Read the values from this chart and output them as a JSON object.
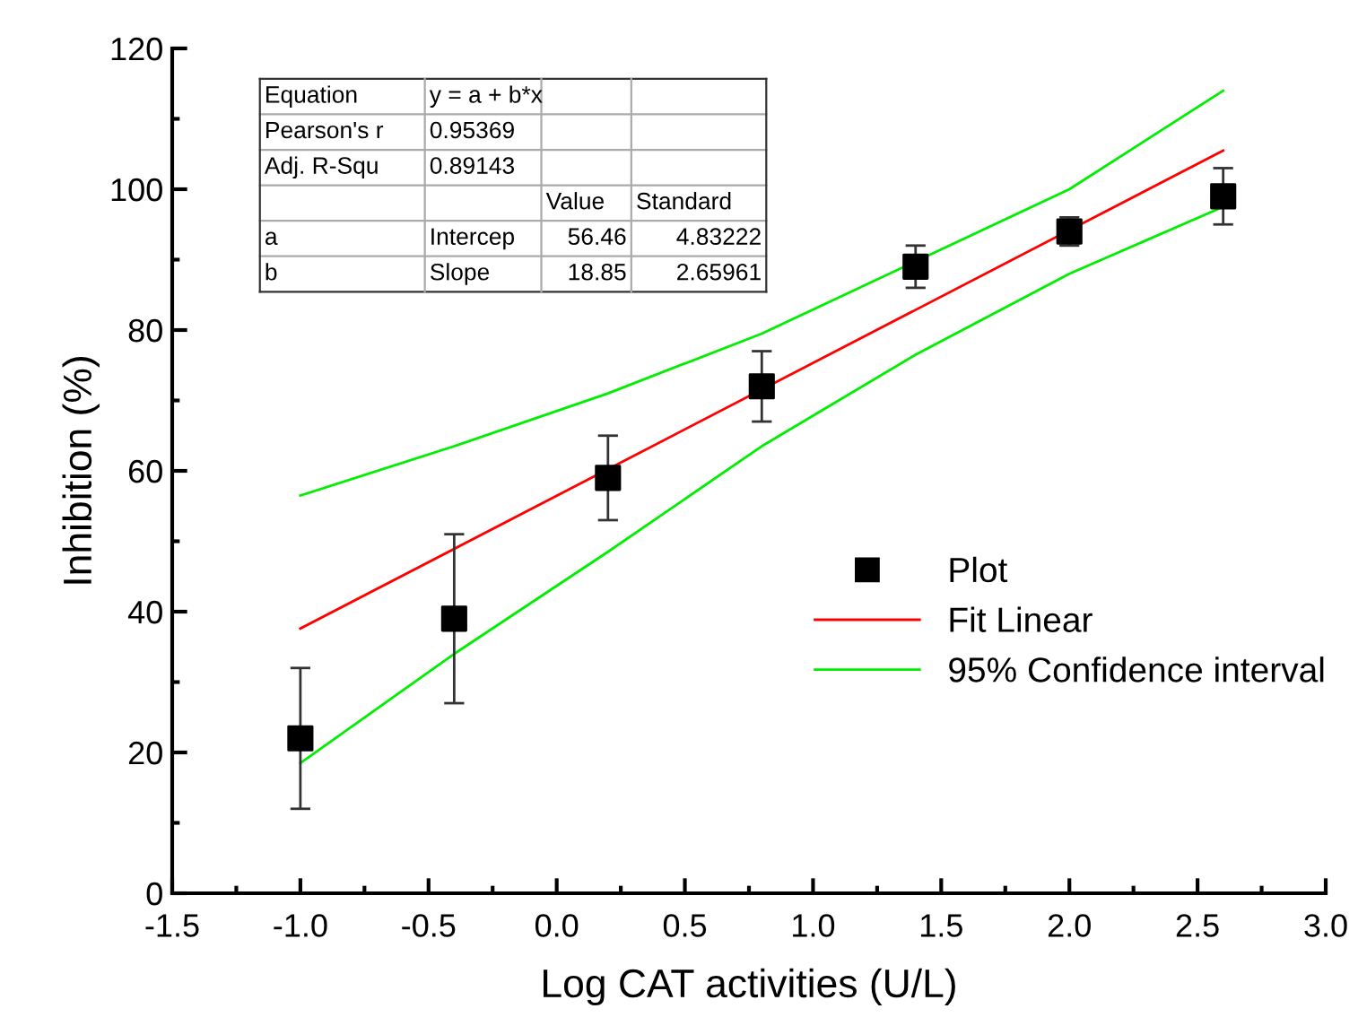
{
  "chart_data": {
    "type": "scatter",
    "xlabel": "Log CAT activities (U/L)",
    "ylabel": "Inhibition (%)",
    "xlim": [
      -1.5,
      3.0
    ],
    "xticks": [
      -1.5,
      {
        "value": -1.0,
        "label": "-1.0"
      },
      -0.5,
      {
        "value": 0,
        "label": "0.0"
      },
      0.5,
      {
        "value": 1,
        "label": "1.0"
      },
      1.5,
      {
        "value": 2,
        "label": "2.0"
      },
      2.5,
      {
        "value": 3,
        "label": "3.0"
      }
    ],
    "ylim": [
      0,
      120
    ],
    "yticks": [
      0,
      20,
      40,
      60,
      80,
      100,
      120
    ],
    "grid": false,
    "legend": "right",
    "series": [
      {
        "name": "Plot",
        "marker": "square",
        "color": "#000000",
        "x": [
          -1.0,
          -0.4,
          0.2,
          0.8,
          1.4,
          2.0,
          2.6
        ],
        "values": [
          22,
          39,
          59,
          72,
          89,
          94,
          99
        ],
        "errors": [
          10,
          12,
          6,
          5,
          3,
          2,
          4
        ]
      },
      {
        "name": "Fit Linear",
        "type": "line",
        "marker": "none",
        "color": "#ff0000",
        "x": [
          -1.0,
          2.6
        ],
        "values": [
          37.6,
          105.5
        ]
      },
      {
        "name": "95% Confidence interval",
        "type": "line",
        "marker": "none",
        "color": "#00ee00",
        "x": [
          -1.0,
          -0.4,
          0.2,
          0.8,
          2.0,
          2.6
        ],
        "values": [
          56.5,
          63.5,
          71,
          79.5,
          100,
          114
        ]
      },
      {
        "type": "line",
        "marker": "none",
        "color": "#00ee00",
        "x": [
          -1.0,
          -0.4,
          0.2,
          0.8,
          1.4,
          2.0,
          2.6
        ],
        "values": [
          18.5,
          34,
          48.5,
          63.5,
          76.5,
          88,
          97.5
        ]
      }
    ],
    "annotations": [
      "Equation",
      "y = a + b*x",
      "Pearson's r",
      "0.95369",
      "Adj. R-Squ",
      "0.89143",
      "Value",
      "Standard",
      "a",
      "Intercep",
      "56.46",
      "4.83222",
      "b",
      "Slope",
      "18.85",
      "2.65961"
    ]
  }
}
